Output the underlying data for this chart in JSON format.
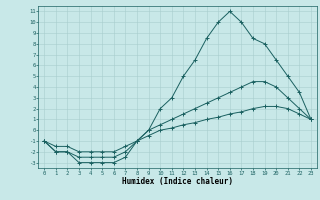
{
  "xlabel": "Humidex (Indice chaleur)",
  "background_color": "#c8e8e8",
  "grid_color": "#a8cece",
  "line_color": "#1a6060",
  "xlim": [
    -0.5,
    23.5
  ],
  "ylim": [
    -3.5,
    11.5
  ],
  "xticks": [
    0,
    1,
    2,
    3,
    4,
    5,
    6,
    7,
    8,
    9,
    10,
    11,
    12,
    13,
    14,
    15,
    16,
    17,
    18,
    19,
    20,
    21,
    22,
    23
  ],
  "yticks": [
    -3,
    -2,
    -1,
    0,
    1,
    2,
    3,
    4,
    5,
    6,
    7,
    8,
    9,
    10,
    11
  ],
  "series": [
    {
      "x": [
        0,
        1,
        2,
        3,
        4,
        5,
        6,
        7,
        8,
        9,
        10,
        11,
        12,
        13,
        14,
        15,
        16,
        17,
        18,
        19,
        20,
        21,
        22,
        23
      ],
      "y": [
        -1,
        -2,
        -2,
        -3,
        -3,
        -3,
        -3,
        -2.5,
        -1,
        0,
        2,
        3,
        5,
        6.5,
        8.5,
        10,
        11,
        10,
        8.5,
        8,
        6.5,
        5,
        3.5,
        1
      ]
    },
    {
      "x": [
        0,
        1,
        2,
        3,
        4,
        5,
        6,
        7,
        8,
        9,
        10,
        11,
        12,
        13,
        14,
        15,
        16,
        17,
        18,
        19,
        20,
        21,
        22,
        23
      ],
      "y": [
        -1,
        -2,
        -2,
        -2.5,
        -2.5,
        -2.5,
        -2.5,
        -2,
        -1,
        0,
        0.5,
        1,
        1.5,
        2,
        2.5,
        3,
        3.5,
        4,
        4.5,
        4.5,
        4,
        3,
        2,
        1
      ]
    },
    {
      "x": [
        0,
        1,
        2,
        3,
        4,
        5,
        6,
        7,
        8,
        9,
        10,
        11,
        12,
        13,
        14,
        15,
        16,
        17,
        18,
        19,
        20,
        21,
        22,
        23
      ],
      "y": [
        -1,
        -1.5,
        -1.5,
        -2,
        -2,
        -2,
        -2,
        -1.5,
        -1,
        -0.5,
        0,
        0.2,
        0.5,
        0.7,
        1,
        1.2,
        1.5,
        1.7,
        2,
        2.2,
        2.2,
        2,
        1.5,
        1
      ]
    }
  ]
}
